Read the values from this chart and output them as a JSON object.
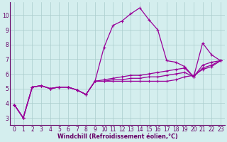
{
  "xlabel": "Windchill (Refroidissement éolien,°C)",
  "background_color": "#d4eeee",
  "line_color": "#990099",
  "grid_color": "#aacccc",
  "axis_color": "#660066",
  "x_values": [
    0,
    1,
    2,
    3,
    4,
    5,
    6,
    7,
    8,
    9,
    10,
    11,
    12,
    13,
    14,
    15,
    16,
    17,
    18,
    19,
    20,
    21,
    22,
    23
  ],
  "series": [
    [
      3.9,
      3.0,
      5.1,
      5.2,
      5.0,
      5.1,
      5.1,
      4.9,
      4.6,
      5.5,
      5.5,
      5.5,
      5.5,
      5.5,
      5.5,
      5.5,
      5.5,
      5.5,
      5.6,
      5.8,
      5.9,
      6.3,
      6.5,
      6.9
    ],
    [
      3.9,
      3.0,
      5.1,
      5.2,
      5.0,
      5.1,
      5.1,
      4.9,
      4.6,
      5.5,
      7.8,
      9.3,
      9.6,
      10.1,
      10.5,
      9.7,
      9.0,
      6.9,
      6.8,
      6.5,
      5.8,
      8.1,
      7.3,
      6.9
    ],
    [
      3.9,
      3.0,
      5.1,
      5.2,
      5.0,
      5.1,
      5.1,
      4.9,
      4.6,
      5.5,
      5.6,
      5.7,
      5.8,
      5.9,
      5.9,
      6.0,
      6.1,
      6.2,
      6.3,
      6.4,
      5.8,
      6.4,
      6.6,
      6.9
    ],
    [
      3.9,
      3.0,
      5.1,
      5.2,
      5.0,
      5.1,
      5.1,
      4.9,
      4.6,
      5.5,
      5.5,
      5.6,
      5.6,
      5.7,
      5.7,
      5.8,
      5.8,
      5.9,
      6.0,
      6.1,
      5.8,
      6.6,
      6.8,
      6.9
    ]
  ],
  "ylim": [
    2.5,
    10.9
  ],
  "xlim": [
    -0.5,
    23.5
  ],
  "yticks": [
    3,
    4,
    5,
    6,
    7,
    8,
    9,
    10
  ],
  "xticks": [
    0,
    1,
    2,
    3,
    4,
    5,
    6,
    7,
    8,
    9,
    10,
    11,
    12,
    13,
    14,
    15,
    16,
    17,
    18,
    19,
    20,
    21,
    22,
    23
  ],
  "tick_fontsize": 5.5,
  "xlabel_fontsize": 5.8,
  "linewidth": 0.9,
  "markersize": 2.2
}
